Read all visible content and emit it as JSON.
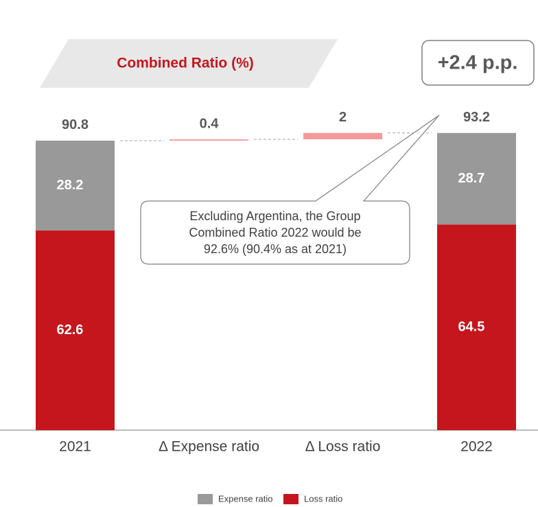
{
  "chart_data": {
    "type": "waterfall",
    "title": "Combined Ratio (%)",
    "badge": "+2.4 p.p.",
    "categories": [
      "2021",
      "Δ Expense ratio",
      "Δ Loss ratio",
      "2022"
    ],
    "totals": [
      90.8,
      null,
      null,
      93.2
    ],
    "deltas": {
      "values": [
        null,
        0.4,
        2.0,
        null
      ],
      "color": "#f4999a"
    },
    "series": [
      {
        "name": "Loss ratio",
        "color": "#c4161c",
        "values": [
          62.6,
          null,
          null,
          64.5
        ]
      },
      {
        "name": "Expense ratio",
        "color": "#999999",
        "values": [
          28.2,
          null,
          null,
          28.7
        ]
      }
    ],
    "legend_order": [
      1,
      0
    ],
    "annotation": [
      "Excluding Argentina, the Group",
      "Combined Ratio 2022 would be",
      "92.6% (90.4% as at 2021)"
    ]
  }
}
